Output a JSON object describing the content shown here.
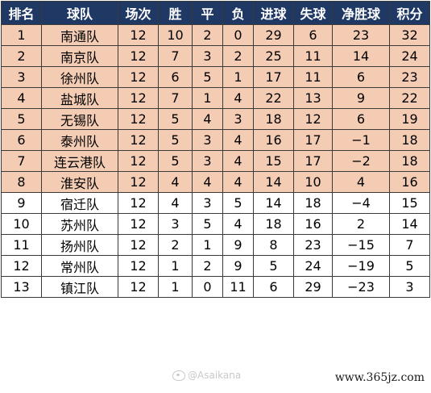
{
  "table": {
    "headers": [
      "排名",
      "球队",
      "场次",
      "胜",
      "平",
      "负",
      "进球",
      "失球",
      "净胜球",
      "积分"
    ],
    "rows": [
      {
        "rank": "1",
        "team": "南通队",
        "played": "12",
        "won": "10",
        "drawn": "2",
        "lost": "0",
        "gf": "29",
        "ga": "6",
        "gd": "23",
        "pts": "32"
      },
      {
        "rank": "2",
        "team": "南京队",
        "played": "12",
        "won": "7",
        "drawn": "3",
        "lost": "2",
        "gf": "25",
        "ga": "11",
        "gd": "14",
        "pts": "24"
      },
      {
        "rank": "3",
        "team": "徐州队",
        "played": "12",
        "won": "6",
        "drawn": "5",
        "lost": "1",
        "gf": "17",
        "ga": "11",
        "gd": "6",
        "pts": "23"
      },
      {
        "rank": "4",
        "team": "盐城队",
        "played": "12",
        "won": "7",
        "drawn": "1",
        "lost": "4",
        "gf": "22",
        "ga": "13",
        "gd": "9",
        "pts": "22"
      },
      {
        "rank": "5",
        "team": "无锡队",
        "played": "12",
        "won": "5",
        "drawn": "4",
        "lost": "3",
        "gf": "18",
        "ga": "12",
        "gd": "6",
        "pts": "19"
      },
      {
        "rank": "6",
        "team": "泰州队",
        "played": "12",
        "won": "5",
        "drawn": "3",
        "lost": "4",
        "gf": "16",
        "ga": "17",
        "gd": "−1",
        "pts": "18"
      },
      {
        "rank": "7",
        "team": "连云港队",
        "played": "12",
        "won": "5",
        "drawn": "3",
        "lost": "4",
        "gf": "15",
        "ga": "17",
        "gd": "−2",
        "pts": "18"
      },
      {
        "rank": "8",
        "team": "淮安队",
        "played": "12",
        "won": "4",
        "drawn": "4",
        "lost": "4",
        "gf": "14",
        "ga": "10",
        "gd": "4",
        "pts": "16"
      },
      {
        "rank": "9",
        "team": "宿迁队",
        "played": "12",
        "won": "4",
        "drawn": "3",
        "lost": "5",
        "gf": "14",
        "ga": "18",
        "gd": "−4",
        "pts": "15"
      },
      {
        "rank": "10",
        "team": "苏州队",
        "played": "12",
        "won": "3",
        "drawn": "5",
        "lost": "4",
        "gf": "18",
        "ga": "16",
        "gd": "2",
        "pts": "14"
      },
      {
        "rank": "11",
        "team": "扬州队",
        "played": "12",
        "won": "2",
        "drawn": "1",
        "lost": "9",
        "gf": "8",
        "ga": "23",
        "gd": "−15",
        "pts": "7"
      },
      {
        "rank": "12",
        "team": "常州队",
        "played": "12",
        "won": "1",
        "drawn": "2",
        "lost": "9",
        "gf": "5",
        "ga": "24",
        "gd": "−19",
        "pts": "5"
      },
      {
        "rank": "13",
        "team": "镇江队",
        "played": "12",
        "won": "1",
        "drawn": "0",
        "lost": "11",
        "gf": "6",
        "ga": "29",
        "gd": "−23",
        "pts": "3"
      }
    ],
    "highlighted_ranks": 8
  },
  "colors": {
    "header_bg": "#1f3864",
    "header_text": "#ffffff",
    "highlight_bg": "#f4ccb4",
    "border": "#3a3a3a"
  },
  "watermark": {
    "icon": "weibo-logo-icon",
    "handle": "@Asaikana"
  },
  "site": {
    "url": "www.365jz.com"
  }
}
